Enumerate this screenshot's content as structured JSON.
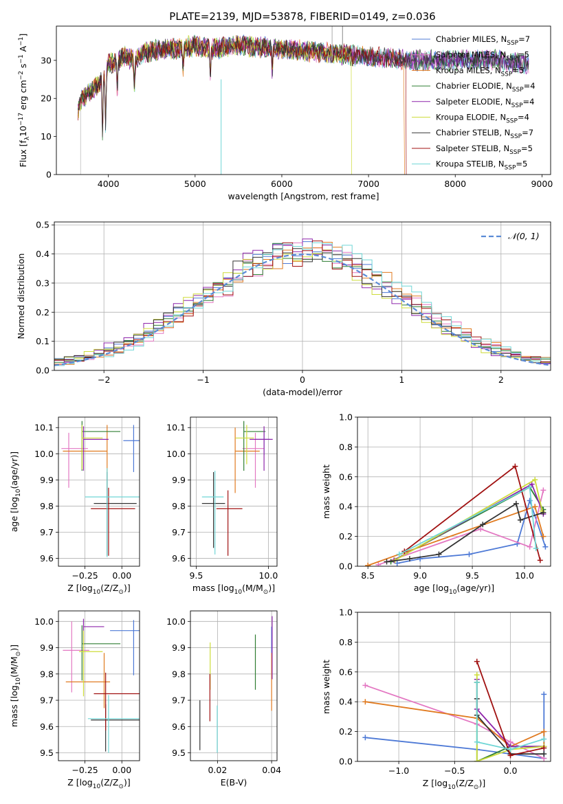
{
  "figure_title": "PLATE=2139, MJD=53878, FIBERID=0149, z=0.036",
  "series_styles": [
    {
      "name": "Chabrier MILES",
      "color": "#4d79d6"
    },
    {
      "name": "Salpeter MILES",
      "color": "#e377c2"
    },
    {
      "name": "Kroupa MILES",
      "color": "#e07a1f"
    },
    {
      "name": "Chabrier ELODIE",
      "color": "#2e7d32"
    },
    {
      "name": "Salpeter ELODIE",
      "color": "#8e24aa"
    },
    {
      "name": "Kroupa ELODIE",
      "color": "#cddc39"
    },
    {
      "name": "Chabrier STELIB",
      "color": "#333333"
    },
    {
      "name": "Salpeter STELIB",
      "color": "#a01010"
    },
    {
      "name": "Kroupa STELIB",
      "color": "#6fd6d6"
    }
  ],
  "chart_data": [
    {
      "id": "spectrum",
      "type": "line",
      "xlabel": "wavelength [Angstrom, rest frame]",
      "ylabel": "Flux [f_λ 10^-17 erg cm^-2 s^-1 A^-1]",
      "xlim": [
        3400,
        9100
      ],
      "ylim": [
        0,
        39
      ],
      "xticks": [
        4000,
        5000,
        6000,
        7000,
        8000,
        9000
      ],
      "yticks": [
        0,
        10,
        20,
        30
      ],
      "grid": false,
      "legend": [
        {
          "name": "Chabrier MILES",
          "nssp": "7"
        },
        {
          "name": "Salpeter MILES",
          "nssp": "5"
        },
        {
          "name": "Kroupa MILES",
          "nssp": "5"
        },
        {
          "name": "Chabrier ELODIE",
          "nssp": "4"
        },
        {
          "name": "Salpeter ELODIE",
          "nssp": "4"
        },
        {
          "name": "Kroupa ELODIE",
          "nssp": "4"
        },
        {
          "name": "Chabrier STELIB",
          "nssp": "7"
        },
        {
          "name": "Salpeter STELIB",
          "nssp": "5"
        },
        {
          "name": "Kroupa STELIB",
          "nssp": "5"
        }
      ],
      "legend_placement": "upper right",
      "continuum": {
        "wavelength": [
          3650,
          3700,
          3800,
          3900,
          4000,
          4100,
          4200,
          4300,
          4400,
          4600,
          4800,
          5000,
          5200,
          5500,
          6000,
          6500,
          7000,
          7500,
          8000,
          8500,
          8850
        ],
        "flux": [
          17,
          20,
          22,
          24,
          29,
          30,
          31,
          30,
          32,
          33,
          33,
          34,
          33,
          34,
          33,
          32,
          31,
          30,
          30,
          30,
          29
        ]
      },
      "absorption_features": [
        {
          "wavelength": 3933,
          "depth": 15
        },
        {
          "wavelength": 3968,
          "depth": 14
        },
        {
          "wavelength": 4102,
          "depth": 8
        },
        {
          "wavelength": 4300,
          "depth": 7
        },
        {
          "wavelength": 4861,
          "depth": 5
        },
        {
          "wavelength": 5175,
          "depth": 7
        },
        {
          "wavelength": 5890,
          "depth": 6
        }
      ],
      "truncations": [
        {
          "series": "Kroupa MILES",
          "wavelength_end": 7410
        },
        {
          "series": "Salpeter STELIB",
          "wavelength_end": 7430
        },
        {
          "series": "Kroupa ELODIE",
          "wavelength_end": 6800
        }
      ]
    },
    {
      "id": "residuals",
      "type": "step",
      "xlabel": "(data-model)/error",
      "ylabel": "Normed distribution",
      "xlim": [
        -2.5,
        2.5
      ],
      "ylim": [
        0,
        0.51
      ],
      "xticks": [
        -2,
        -1,
        0,
        1,
        2
      ],
      "yticks": [
        0.0,
        0.1,
        0.2,
        0.3,
        0.4,
        0.5
      ],
      "grid": true,
      "legend": [
        "N(0,1)"
      ],
      "legend_placement": "upper right",
      "reference_curve": {
        "name": "N(0,1)",
        "mean": 0,
        "sigma": 1
      },
      "bin_width": 0.1
    },
    {
      "id": "age_vs_Z",
      "type": "errorbar",
      "xlabel": "Z [log10(Z/Z⊙)]",
      "ylabel": "age  [log10(age/yr)]",
      "xlim": [
        -0.43,
        0.12
      ],
      "ylim": [
        9.57,
        10.14
      ],
      "xticks": [
        -0.25,
        0.0
      ],
      "yticks": [
        9.6,
        9.7,
        9.8,
        9.9,
        10.0,
        10.1
      ],
      "grid": true,
      "points": [
        {
          "series": "Chabrier MILES",
          "x": 0.08,
          "y": 10.05,
          "xerr": [
            0.07,
            0.04
          ],
          "yerr": [
            0.12,
            0.06
          ]
        },
        {
          "series": "Salpeter MILES",
          "x": -0.36,
          "y": 10.02,
          "xerr": [
            0.05,
            0.13
          ],
          "yerr": [
            0.15,
            0.06
          ]
        },
        {
          "series": "Kroupa MILES",
          "x": -0.1,
          "y": 10.01,
          "xerr": [
            0.3,
            0.0
          ],
          "yerr": [
            0.15,
            0.1
          ]
        },
        {
          "series": "Chabrier ELODIE",
          "x": -0.27,
          "y": 10.085,
          "xerr": [
            0.0,
            0.26
          ],
          "yerr": [
            0.15,
            0.04
          ]
        },
        {
          "series": "Salpeter ELODIE",
          "x": -0.26,
          "y": 10.055,
          "xerr": [
            0.0,
            0.17
          ],
          "yerr": [
            0.12,
            0.05
          ]
        },
        {
          "series": "Kroupa ELODIE",
          "x": -0.27,
          "y": 10.06,
          "xerr": [
            0.0,
            0.14
          ],
          "yerr": [
            0.12,
            0.05
          ]
        },
        {
          "series": "Chabrier STELIB",
          "x": -0.1,
          "y": 9.81,
          "xerr": [
            0.09,
            0.2
          ],
          "yerr": [
            0.2,
            0.12
          ]
        },
        {
          "series": "Salpeter STELIB",
          "x": -0.09,
          "y": 9.79,
          "xerr": [
            0.12,
            0.18
          ],
          "yerr": [
            0.18,
            0.08
          ]
        },
        {
          "series": "Kroupa STELIB",
          "x": -0.1,
          "y": 9.835,
          "xerr": [
            0.15,
            0.22
          ],
          "yerr": [
            0.23,
            0.11
          ]
        }
      ]
    },
    {
      "id": "age_vs_mass",
      "type": "errorbar",
      "xlabel": "mass [log10(M/M⊙)]",
      "ylabel": "",
      "xlim": [
        9.46,
        10.06
      ],
      "ylim": [
        9.57,
        10.14
      ],
      "xticks": [
        9.5,
        10.0
      ],
      "yticks": [
        9.6,
        9.7,
        9.8,
        9.9,
        10.0,
        10.1
      ],
      "grid": true,
      "points": [
        {
          "series": "Chabrier MILES",
          "x": 9.97,
          "y": 10.055,
          "xerr": [
            0.06,
            0.04
          ],
          "yerr": [
            0.06,
            0.04
          ]
        },
        {
          "series": "Salpeter MILES",
          "x": 9.91,
          "y": 10.02,
          "xerr": [
            0.09,
            0.06
          ],
          "yerr": [
            0.15,
            0.06
          ]
        },
        {
          "series": "Kroupa MILES",
          "x": 9.77,
          "y": 10.01,
          "xerr": [
            0.0,
            0.17
          ],
          "yerr": [
            0.16,
            0.09
          ]
        },
        {
          "series": "Chabrier ELODIE",
          "x": 9.83,
          "y": 10.085,
          "xerr": [
            0.0,
            0.15
          ],
          "yerr": [
            0.15,
            0.04
          ]
        },
        {
          "series": "Salpeter ELODIE",
          "x": 9.97,
          "y": 10.055,
          "xerr": [
            0.1,
            0.06
          ],
          "yerr": [
            0.12,
            0.05
          ]
        },
        {
          "series": "Kroupa ELODIE",
          "x": 9.85,
          "y": 10.06,
          "xerr": [
            0.08,
            0.05
          ],
          "yerr": [
            0.1,
            0.05
          ]
        },
        {
          "series": "Chabrier STELIB",
          "x": 9.62,
          "y": 9.81,
          "xerr": [
            0.08,
            0.08
          ],
          "yerr": [
            0.17,
            0.12
          ]
        },
        {
          "series": "Salpeter STELIB",
          "x": 9.72,
          "y": 9.79,
          "xerr": [
            0.08,
            0.1
          ],
          "yerr": [
            0.18,
            0.07
          ]
        },
        {
          "series": "Kroupa STELIB",
          "x": 9.63,
          "y": 9.835,
          "xerr": [
            0.09,
            0.06
          ],
          "yerr": [
            0.22,
            0.1
          ]
        }
      ]
    },
    {
      "id": "weight_vs_age",
      "type": "line",
      "xlabel": "age  [log10(age/yr)]",
      "ylabel": "mass weight",
      "xlim": [
        8.4,
        10.25
      ],
      "ylim": [
        0,
        1.0
      ],
      "xticks": [
        8.5,
        9.0,
        9.5,
        10.0
      ],
      "yticks": [
        0.0,
        0.2,
        0.4,
        0.6,
        0.8,
        1.0
      ],
      "grid": true,
      "series": [
        {
          "name": "Chabrier MILES",
          "x": [
            8.78,
            9.0,
            9.47,
            9.93,
            10.05,
            10.2
          ],
          "y": [
            0.02,
            0.05,
            0.08,
            0.15,
            0.44,
            0.13
          ]
        },
        {
          "name": "Salpeter MILES",
          "x": [
            8.6,
            9.58,
            10.05,
            10.18
          ],
          "y": [
            0.01,
            0.25,
            0.13,
            0.51
          ]
        },
        {
          "name": "Kroupa MILES",
          "x": [
            8.5,
            8.88,
            10.1,
            10.18
          ],
          "y": [
            0.005,
            0.1,
            0.4,
            0.2
          ]
        },
        {
          "name": "Chabrier ELODIE",
          "x": [
            8.72,
            10.05,
            10.18
          ],
          "y": [
            0.03,
            0.53,
            0.38
          ]
        },
        {
          "name": "Salpeter ELODIE",
          "x": [
            8.75,
            10.07,
            10.18
          ],
          "y": [
            0.04,
            0.55,
            0.35
          ]
        },
        {
          "name": "Kroupa ELODIE",
          "x": [
            8.76,
            10.1,
            10.17
          ],
          "y": [
            0.04,
            0.58,
            0.37
          ]
        },
        {
          "name": "Chabrier STELIB",
          "x": [
            8.68,
            8.9,
            9.18,
            9.6,
            9.92,
            9.96,
            10.18
          ],
          "y": [
            0.03,
            0.05,
            0.08,
            0.28,
            0.42,
            0.31,
            0.36
          ]
        },
        {
          "name": "Salpeter STELIB",
          "x": [
            8.85,
            9.91,
            10.15
          ],
          "y": [
            0.1,
            0.67,
            0.04
          ]
        },
        {
          "name": "Kroupa STELIB",
          "x": [
            8.8,
            10.05,
            10.11
          ],
          "y": [
            0.08,
            0.53,
            0.12
          ]
        }
      ]
    },
    {
      "id": "mass_vs_Z",
      "type": "errorbar",
      "xlabel": "Z [log10(Z/Z⊙)]",
      "ylabel": "mass [log10(M/M⊙)]",
      "xlim": [
        -0.43,
        0.12
      ],
      "ylim": [
        9.47,
        10.04
      ],
      "xticks": [
        -0.25,
        0.0
      ],
      "yticks": [
        9.5,
        9.6,
        9.7,
        9.8,
        9.9,
        10.0
      ],
      "grid": true,
      "points": [
        {
          "series": "Chabrier MILES",
          "x": 0.08,
          "y": 9.965,
          "xerr": [
            0.16,
            0.05
          ],
          "yerr": [
            0.17,
            0.04
          ]
        },
        {
          "series": "Salpeter MILES",
          "x": -0.34,
          "y": 9.89,
          "xerr": [
            0.06,
            0.12
          ],
          "yerr": [
            0.16,
            0.11
          ]
        },
        {
          "series": "Kroupa MILES",
          "x": -0.12,
          "y": 9.77,
          "xerr": [
            0.26,
            0.04
          ],
          "yerr": [
            0.1,
            0.11
          ]
        },
        {
          "series": "Chabrier ELODIE",
          "x": -0.27,
          "y": 9.915,
          "xerr": [
            0.0,
            0.26
          ],
          "yerr": [
            0.14,
            0.07
          ]
        },
        {
          "series": "Salpeter ELODIE",
          "x": -0.26,
          "y": 9.98,
          "xerr": [
            0.0,
            0.14
          ],
          "yerr": [
            0.07,
            0.03
          ]
        },
        {
          "series": "Kroupa ELODIE",
          "x": -0.26,
          "y": 9.885,
          "xerr": [
            0.03,
            0.13
          ],
          "yerr": [
            0.17,
            0.08
          ]
        },
        {
          "series": "Chabrier STELIB",
          "x": -0.11,
          "y": 9.625,
          "xerr": [
            0.1,
            0.24
          ],
          "yerr": [
            0.12,
            0.06
          ]
        },
        {
          "series": "Salpeter STELIB",
          "x": -0.11,
          "y": 9.725,
          "xerr": [
            0.08,
            0.24
          ],
          "yerr": [
            0.14,
            0.08
          ]
        },
        {
          "series": "Kroupa STELIB",
          "x": -0.09,
          "y": 9.63,
          "xerr": [
            0.14,
            0.25
          ],
          "yerr": [
            0.13,
            0.09
          ]
        }
      ]
    },
    {
      "id": "mass_vs_ebv",
      "type": "errorbar",
      "xlabel": "E(B-V)",
      "ylabel": "",
      "xlim": [
        0.01,
        0.042
      ],
      "ylim": [
        9.47,
        10.04
      ],
      "xticks": [
        0.02,
        0.04
      ],
      "yticks": [
        9.5,
        9.6,
        9.7,
        9.8,
        9.9,
        10.0
      ],
      "grid": true,
      "points": [
        {
          "series": "Chabrier MILES",
          "x": 0.04,
          "y": 9.93,
          "xerr": [
            0,
            0
          ],
          "yerr": [
            0.13,
            0.05
          ]
        },
        {
          "series": "Kroupa MILES",
          "x": 0.04,
          "y": 9.75,
          "xerr": [
            0,
            0
          ],
          "yerr": [
            0.09,
            0.13
          ]
        },
        {
          "series": "Chabrier ELODIE",
          "x": 0.034,
          "y": 9.84,
          "xerr": [
            0,
            0
          ],
          "yerr": [
            0.1,
            0.11
          ]
        },
        {
          "series": "Salpeter ELODIE",
          "x": 0.0402,
          "y": 9.9,
          "xerr": [
            0,
            0
          ],
          "yerr": [
            0.12,
            0.12
          ]
        },
        {
          "series": "Kroupa ELODIE",
          "x": 0.0173,
          "y": 9.84,
          "xerr": [
            0,
            0
          ],
          "yerr": [
            0.1,
            0.08
          ]
        },
        {
          "series": "Chabrier STELIB",
          "x": 0.0135,
          "y": 9.6,
          "xerr": [
            0,
            0
          ],
          "yerr": [
            0.09,
            0.1
          ]
        },
        {
          "series": "Salpeter STELIB",
          "x": 0.0172,
          "y": 9.71,
          "xerr": [
            0,
            0
          ],
          "yerr": [
            0.09,
            0.09
          ]
        },
        {
          "series": "Kroupa STELIB",
          "x": 0.0199,
          "y": 9.6,
          "xerr": [
            0,
            0
          ],
          "yerr": [
            0.1,
            0.08
          ]
        }
      ]
    },
    {
      "id": "weight_vs_Z",
      "type": "line",
      "xlabel": "Z [log10(Z/Z⊙)]",
      "ylabel": "mass weight",
      "xlim": [
        -1.37,
        0.36
      ],
      "ylim": [
        0,
        1.0
      ],
      "xticks": [
        -1.0,
        -0.5,
        0.0
      ],
      "yticks": [
        0.0,
        0.2,
        0.4,
        0.6,
        0.8,
        1.0
      ],
      "grid": true,
      "series": [
        {
          "name": "Chabrier MILES",
          "x": [
            -1.3,
            -0.3,
            0.3,
            0.3
          ],
          "y": [
            0.16,
            0.08,
            0.02,
            0.45
          ]
        },
        {
          "name": "Salpeter MILES",
          "x": [
            -1.3,
            -0.3,
            0.0,
            0.3
          ],
          "y": [
            0.51,
            0.25,
            0.13,
            0.02
          ]
        },
        {
          "name": "Kroupa MILES",
          "x": [
            -1.3,
            -0.3,
            0.0,
            0.3,
            0.3
          ],
          "y": [
            0.4,
            0.29,
            0.1,
            0.2,
            0.1
          ]
        },
        {
          "name": "Chabrier ELODIE",
          "x": [
            -0.3,
            -0.3,
            0.0,
            0.3
          ],
          "y": [
            0.53,
            0.0,
            0.1,
            0.1
          ]
        },
        {
          "name": "Salpeter ELODIE",
          "x": [
            -0.3,
            -0.3,
            0.0,
            0.3
          ],
          "y": [
            0.55,
            0.35,
            0.1,
            0.1
          ]
        },
        {
          "name": "Kroupa ELODIE",
          "x": [
            -0.3,
            -0.3,
            0.0,
            0.3
          ],
          "y": [
            0.58,
            0.0,
            0.08,
            0.1
          ]
        },
        {
          "name": "Chabrier STELIB",
          "x": [
            -0.3,
            -0.3,
            0.0,
            0.3
          ],
          "y": [
            0.42,
            0.31,
            0.05,
            0.05
          ]
        },
        {
          "name": "Salpeter STELIB",
          "x": [
            -0.3,
            0.0,
            0.3
          ],
          "y": [
            0.67,
            0.04,
            0.09
          ]
        },
        {
          "name": "Kroupa STELIB",
          "x": [
            -0.3,
            -0.3,
            0.0,
            0.3
          ],
          "y": [
            0.53,
            0.13,
            0.08,
            0.15
          ]
        }
      ]
    }
  ]
}
